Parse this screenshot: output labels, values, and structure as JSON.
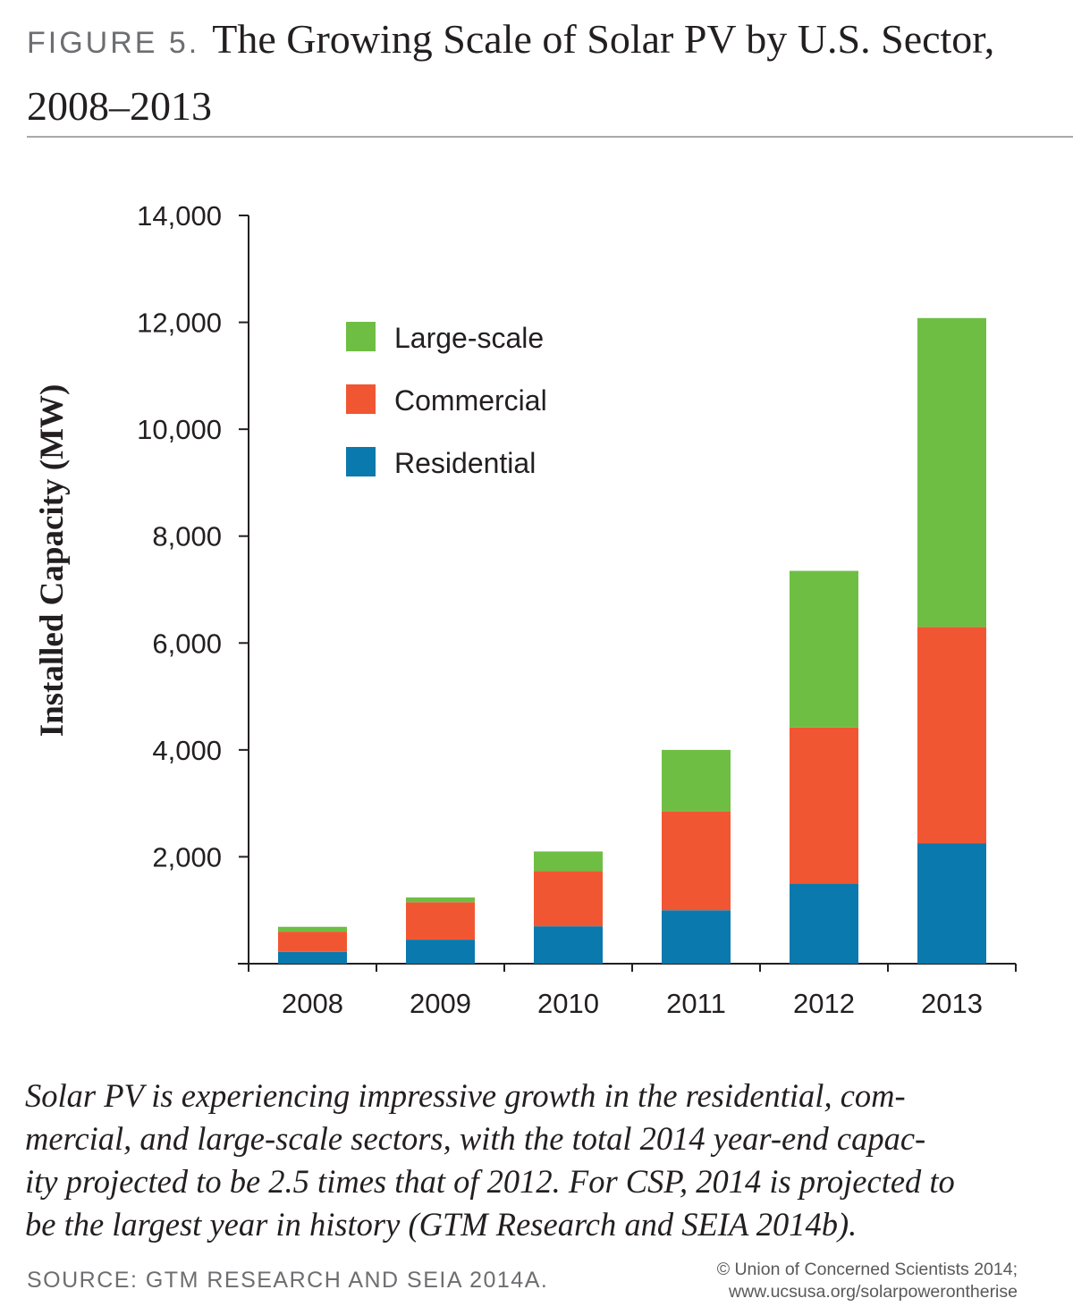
{
  "header": {
    "figure_label": "FIGURE 5.",
    "title_line1": "The Growing Scale of Solar PV by U.S. Sector,",
    "title_line2": "2008–2013"
  },
  "caption": {
    "line1": "Solar PV is experiencing impressive growth in the residential, com-",
    "line2": "mercial, and large-scale sectors, with the total 2014 year-end capac-",
    "line3": "ity projected to be 2.5 times that of 2012. For CSP, 2014 is projected to",
    "line4": "be the largest year in history (GTM Research and SEIA 2014b)."
  },
  "source": "SOURCE: GTM RESEARCH AND SEIA 2014A.",
  "credit": {
    "line1": "© Union of Concerned Scientists 2014;",
    "line2": "www.ucsusa.org/solarpowerontherise"
  },
  "chart_data": {
    "type": "bar",
    "stacked": true,
    "title": "",
    "xlabel": "",
    "ylabel": "Installed Capacity (MW)",
    "ylim": [
      0,
      14000
    ],
    "yticks": [
      2000,
      4000,
      6000,
      8000,
      10000,
      12000,
      14000
    ],
    "ytick_labels": [
      "2,000",
      "4,000",
      "6,000",
      "8,000",
      "10,000",
      "12,000",
      "14,000"
    ],
    "categories": [
      "2008",
      "2009",
      "2010",
      "2011",
      "2012",
      "2013"
    ],
    "series": [
      {
        "name": "Residential",
        "color": "#0a79ad",
        "values": [
          220,
          450,
          700,
          1000,
          1500,
          2250
        ]
      },
      {
        "name": "Commercial",
        "color": "#f15633",
        "values": [
          380,
          700,
          1030,
          1850,
          2920,
          4050
        ]
      },
      {
        "name": "Large-scale",
        "color": "#6fbe44",
        "values": [
          90,
          90,
          370,
          1150,
          2930,
          5780
        ]
      }
    ],
    "legend_order": [
      "Large-scale",
      "Commercial",
      "Residential"
    ],
    "legend_position": "top-left",
    "grid": false
  }
}
